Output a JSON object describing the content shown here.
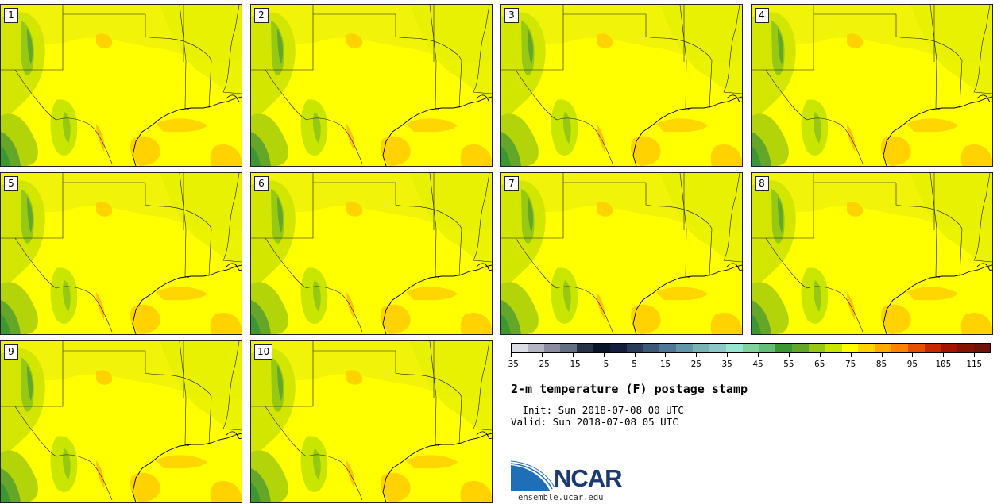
{
  "title": "2-m temperature (F) postage stamp",
  "init": " Init: Sun 2018-07-08 00 UTC",
  "valid": "Valid: Sun 2018-07-08 05 UTC",
  "org": {
    "name": "NCAR",
    "url": "ensemble.ucar.edu"
  },
  "members": [
    {
      "label": "1"
    },
    {
      "label": "2"
    },
    {
      "label": "3"
    },
    {
      "label": "4"
    },
    {
      "label": "5"
    },
    {
      "label": "6"
    },
    {
      "label": "7"
    },
    {
      "label": "8"
    },
    {
      "label": "9"
    },
    {
      "label": "10"
    }
  ],
  "colorbar": {
    "ticks": [
      "−35",
      "−25",
      "−15",
      "−5",
      "5",
      "15",
      "25",
      "35",
      "45",
      "55",
      "65",
      "75",
      "85",
      "95",
      "105",
      "115"
    ],
    "colors": [
      "#dcdce6",
      "#b4b4c3",
      "#8c8ca0",
      "#646e82",
      "#283246",
      "#0a1428",
      "#141e3c",
      "#283c5a",
      "#3c5a78",
      "#507896",
      "#6496aa",
      "#78b4b4",
      "#8cc8c8",
      "#96e6d2",
      "#82d2a0",
      "#64be78",
      "#3c9632",
      "#64a628",
      "#96c814",
      "#c8e600",
      "#ffff00",
      "#ffd200",
      "#ffaa00",
      "#ff8200",
      "#e65000",
      "#c82800",
      "#a51400",
      "#821400",
      "#6e140a"
    ]
  }
}
